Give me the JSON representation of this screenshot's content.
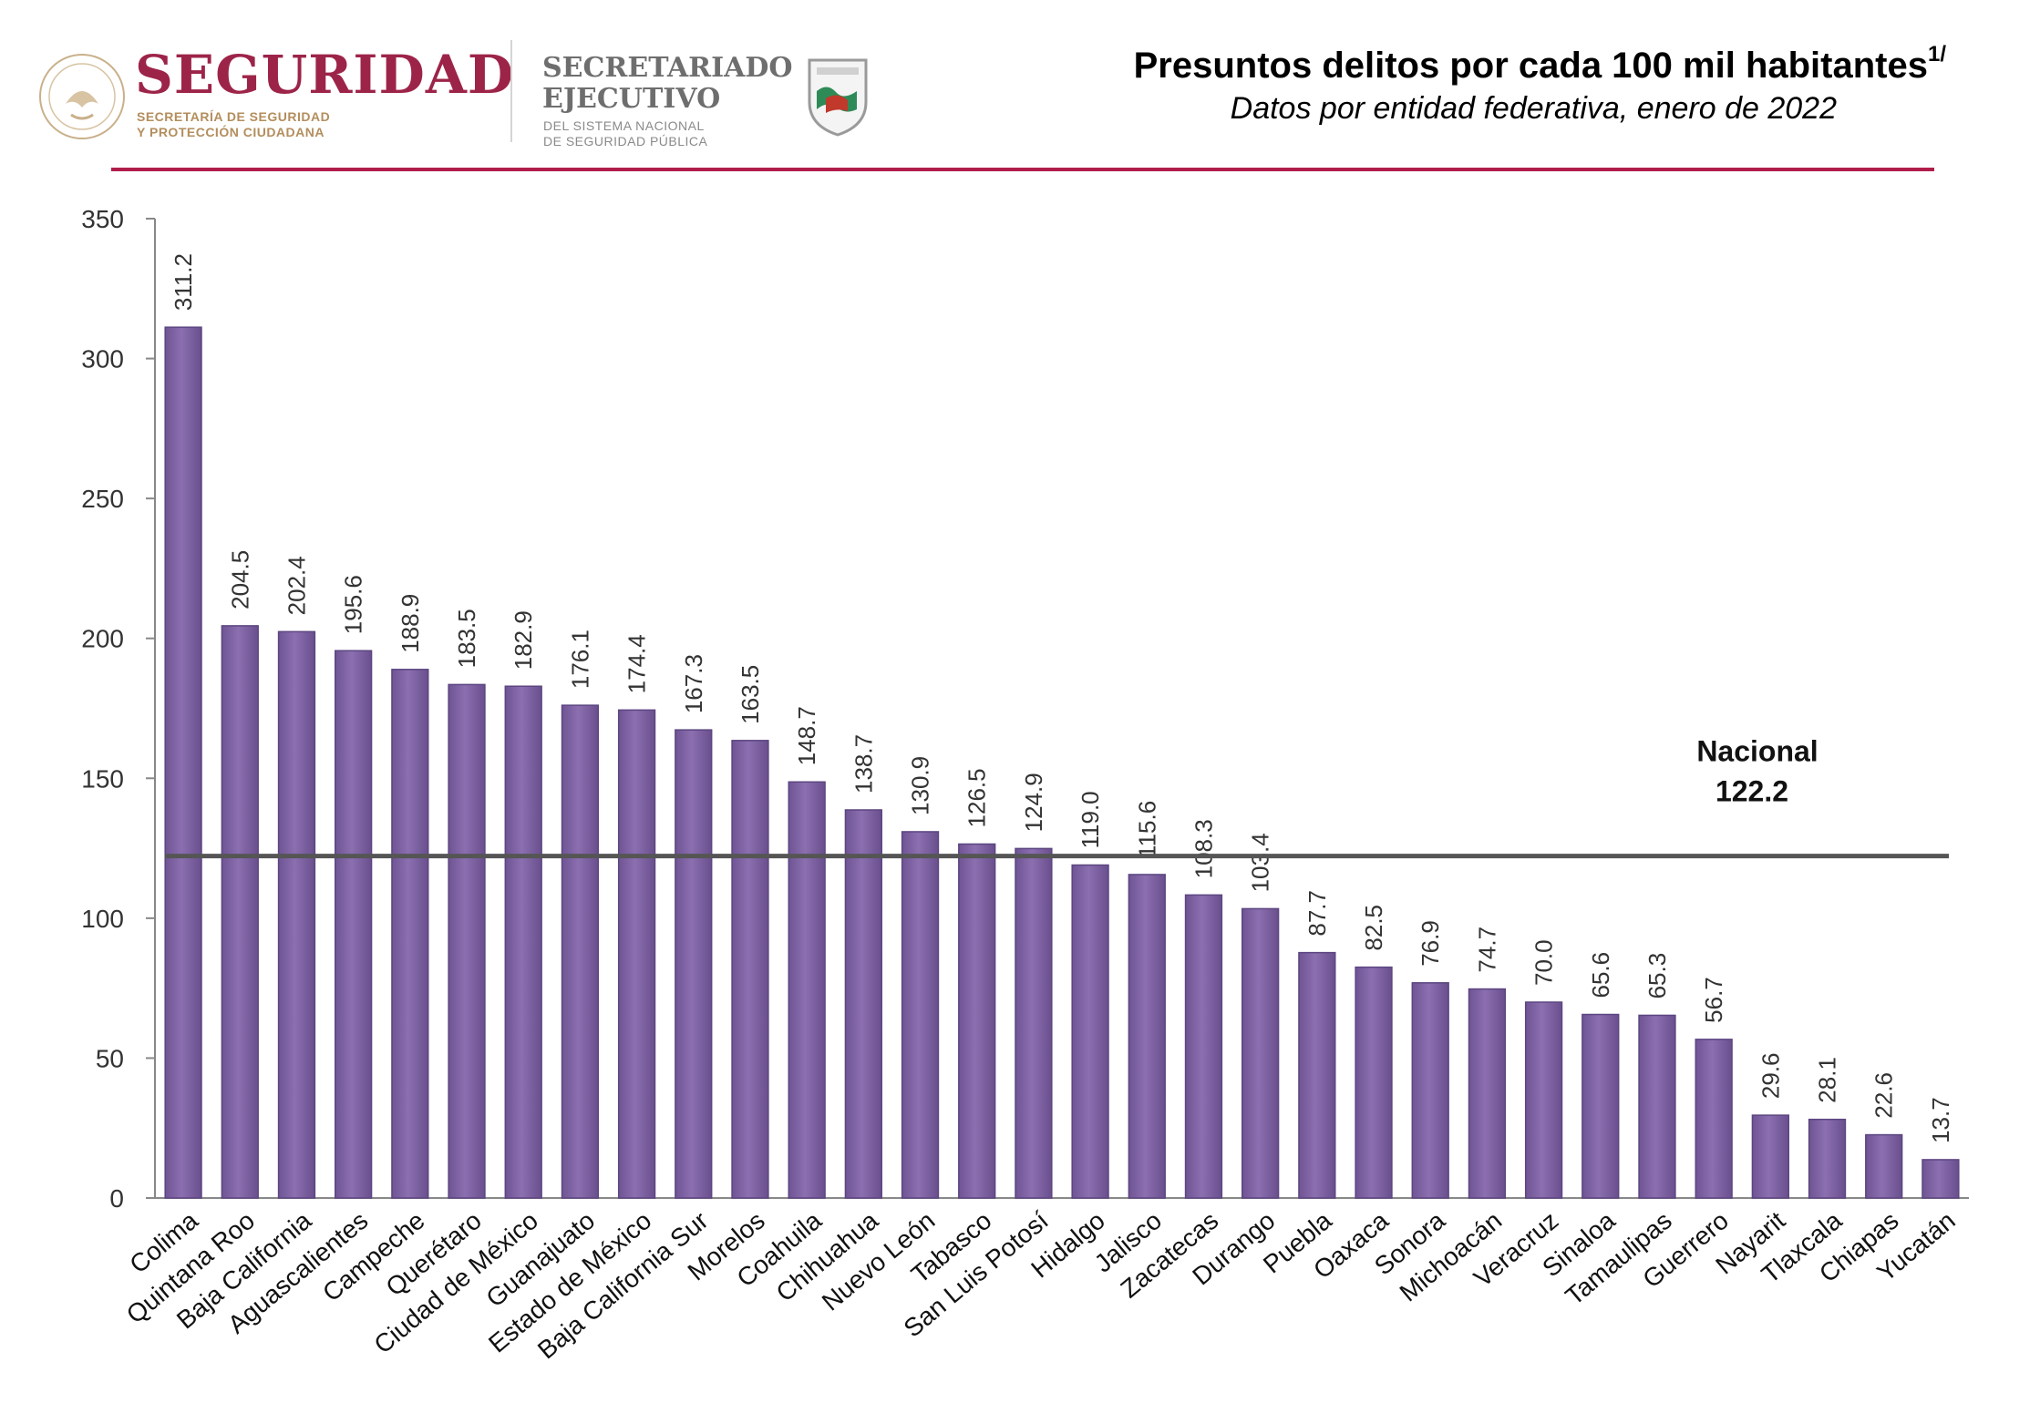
{
  "header": {
    "brand_main": "SEGURIDAD",
    "brand_sub_1": "SECRETARÍA DE SEGURIDAD",
    "brand_sub_2": "Y PROTECCIÓN CIUDADANA",
    "secretariado_1": "SECRETARIADO",
    "secretariado_2": "EJECUTIVO",
    "secretariado_sub_1": "DEL SISTEMA NACIONAL",
    "secretariado_sub_2": "DE SEGURIDAD PÚBLICA",
    "title": "Presuntos delitos por cada 100 mil habitantes",
    "title_sup": "1/",
    "subtitle": "Datos por entidad federativa, enero de 2022"
  },
  "colors": {
    "bar": "#8064a2",
    "bar_dark": "#5c4680",
    "reference_line": "#555555",
    "rule": "#b01e4a",
    "brand": "#9d2449",
    "gold": "#b38e5d"
  },
  "chart_data": {
    "type": "bar",
    "categories": [
      "Colima",
      "Quintana Roo",
      "Baja California",
      "Aguascalientes",
      "Campeche",
      "Querétaro",
      "Ciudad de México",
      "Guanajuato",
      "Estado de México",
      "Baja California Sur",
      "Morelos",
      "Coahuila",
      "Chihuahua",
      "Nuevo León",
      "Tabasco",
      "San Luis Potosí",
      "Hidalgo",
      "Jalisco",
      "Zacatecas",
      "Durango",
      "Puebla",
      "Oaxaca",
      "Sonora",
      "Michoacán",
      "Veracruz",
      "Sinaloa",
      "Tamaulipas",
      "Guerrero",
      "Nayarit",
      "Tlaxcala",
      "Chiapas",
      "Yucatán"
    ],
    "values": [
      311.2,
      204.5,
      202.4,
      195.6,
      188.9,
      183.5,
      182.9,
      176.1,
      174.4,
      167.3,
      163.5,
      148.7,
      138.7,
      130.9,
      126.5,
      124.9,
      119.0,
      115.6,
      108.3,
      103.4,
      87.7,
      82.5,
      76.9,
      74.7,
      70.0,
      65.6,
      65.3,
      56.7,
      29.6,
      28.1,
      22.6,
      13.7
    ],
    "value_labels": [
      "311.2",
      "204.5",
      "202.4",
      "195.6",
      "188.9",
      "183.5",
      "182.9",
      "176.1",
      "174.4",
      "167.3",
      "163.5",
      "148.7",
      "138.7",
      "130.9",
      "126.5",
      "124.9",
      "119.0",
      "115.6",
      "108.3",
      "103.4",
      "87.7",
      "82.5",
      "76.9",
      "74.7",
      "70.0",
      "65.6",
      "65.3",
      "56.7",
      "29.6",
      "28.1",
      "22.6",
      "13.7"
    ],
    "ylim": [
      0,
      350
    ],
    "yticks": [
      "0",
      "50",
      "100",
      "150",
      "200",
      "250",
      "300",
      "350"
    ],
    "grid": false,
    "reference": {
      "label": "Nacional",
      "value": 122.2,
      "value_label": "122.2"
    }
  }
}
